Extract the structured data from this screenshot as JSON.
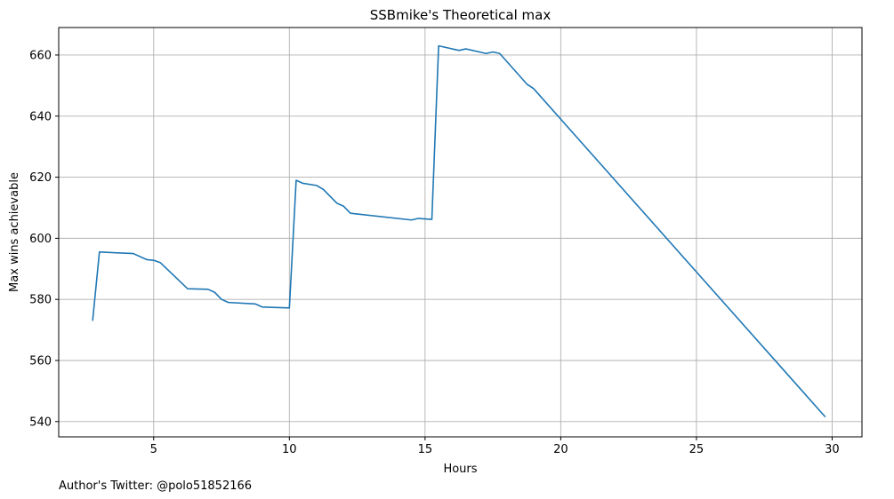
{
  "chart_data": {
    "type": "line",
    "title": "SSBmike's Theoretical max",
    "xlabel": "Hours",
    "ylabel": "Max wins achievable",
    "xlim": [
      1.5,
      31.1
    ],
    "ylim": [
      535,
      669
    ],
    "xticks": [
      5,
      10,
      15,
      20,
      25,
      30
    ],
    "yticks": [
      540,
      560,
      580,
      600,
      620,
      640,
      660
    ],
    "grid": true,
    "line_color": "#1f77b4",
    "series": [
      {
        "x": [
          2.75,
          3.0,
          4.25,
          4.75,
          5.0,
          5.25,
          6.25,
          7.0,
          7.25,
          7.5,
          7.75,
          8.75,
          9.0,
          10.0,
          10.25,
          10.5,
          11.0,
          11.25,
          11.75,
          12.0,
          12.25,
          14.5,
          14.75,
          15.25,
          15.5,
          16.25,
          16.5,
          17.25,
          17.5,
          17.75,
          18.75,
          19.0,
          29.75
        ],
        "y": [
          573,
          595.5,
          595,
          593,
          592.8,
          592,
          583.5,
          583.3,
          582.3,
          580,
          579,
          578.5,
          577.5,
          577.2,
          619,
          618,
          617.3,
          616,
          611.5,
          610.5,
          608.2,
          606,
          606.5,
          606.2,
          663,
          661.5,
          662,
          660.5,
          661,
          660.5,
          650.5,
          649,
          541.5
        ]
      }
    ]
  },
  "footnote": "Author's Twitter: @polo51852166"
}
